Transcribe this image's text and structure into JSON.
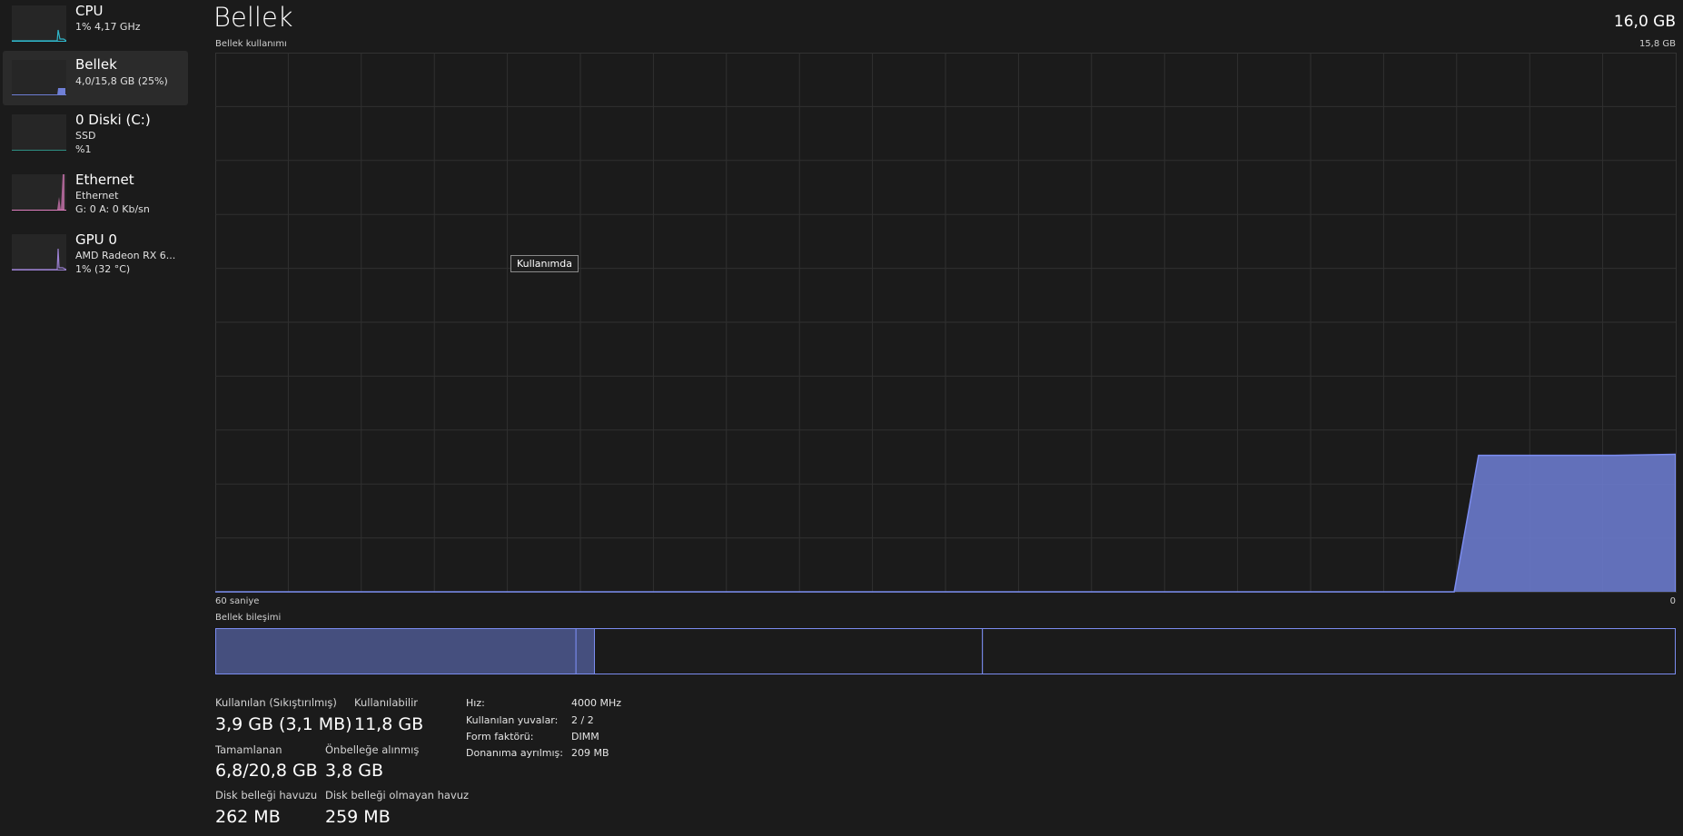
{
  "sidebar": {
    "items": [
      {
        "name": "CPU",
        "line1": "1% 4,17 GHz",
        "line2": "",
        "color": "#2fb6c9",
        "selected": false
      },
      {
        "name": "Bellek",
        "line1": "4,0/15,8 GB (25%)",
        "line2": "",
        "color": "#6f7fd6",
        "selected": true
      },
      {
        "name": "0 Diski (C:)",
        "line1": "SSD",
        "line2": "%1",
        "color": "#2e8f83",
        "selected": false
      },
      {
        "name": "Ethernet",
        "line1": "Ethernet",
        "line2": "G: 0 A: 0 Kb/sn",
        "color": "#e07ec0",
        "selected": false
      },
      {
        "name": "GPU 0",
        "line1": "AMD Radeon RX 6...",
        "line2": "1% (32 °C)",
        "color": "#9a7fd0",
        "selected": false
      }
    ]
  },
  "header": {
    "title": "Bellek",
    "total": "16,0 GB"
  },
  "usage_chart": {
    "label": "Bellek kullanımı",
    "max_label": "15,8 GB",
    "x_left_label": "60 saniye",
    "x_right_label": "0",
    "tooltip": "Kullanımda",
    "color": "#6f7fd6"
  },
  "chart_data": {
    "type": "area",
    "xlabel_left": "60 saniye",
    "xlabel_right": "0",
    "xlim": [
      60,
      0
    ],
    "ylim": [
      0,
      15.8
    ],
    "y_max_label": "15,8 GB",
    "grid": true,
    "x_unit": "seconds ago",
    "y_unit": "GB",
    "points": [
      [
        60,
        0
      ],
      [
        9.1,
        0
      ],
      [
        8.1,
        4.0
      ],
      [
        2.5,
        4.0
      ],
      [
        0,
        4.03
      ]
    ]
  },
  "composition": {
    "label": "Bellek bileşimi",
    "segments": [
      {
        "name": "in-use",
        "gb": 3.9,
        "fill": "#454f7e"
      },
      {
        "name": "modified",
        "gb": 0.2,
        "fill": "#454f7e"
      },
      {
        "name": "standby",
        "gb": 4.2,
        "fill": "#1b1b1b"
      },
      {
        "name": "free",
        "gb": 7.5,
        "fill": "#1b1b1b"
      }
    ],
    "border": "#7b8cf0"
  },
  "stats": {
    "used": {
      "label": "Kullanılan (Sıkıştırılmış)",
      "value": "3,9 GB (3,1 MB)"
    },
    "available": {
      "label": "Kullanılabilir",
      "value": "11,8 GB"
    },
    "committed": {
      "label": "Tamamlanan",
      "value": "6,8/20,8 GB"
    },
    "cached": {
      "label": "Önbelleğe alınmış",
      "value": "3,8 GB"
    },
    "paged": {
      "label": "Disk belleği havuzu",
      "value": "262 MB"
    },
    "nonpaged": {
      "label": "Disk belleği olmayan havuz",
      "value": "259 MB"
    }
  },
  "specs": [
    {
      "label": "Hız:",
      "value": "4000 MHz"
    },
    {
      "label": "Kullanılan yuvalar:",
      "value": "2 / 2"
    },
    {
      "label": "Form faktörü:",
      "value": "DIMM"
    },
    {
      "label": "Donanıma ayrılmış:",
      "value": "209 MB"
    }
  ]
}
